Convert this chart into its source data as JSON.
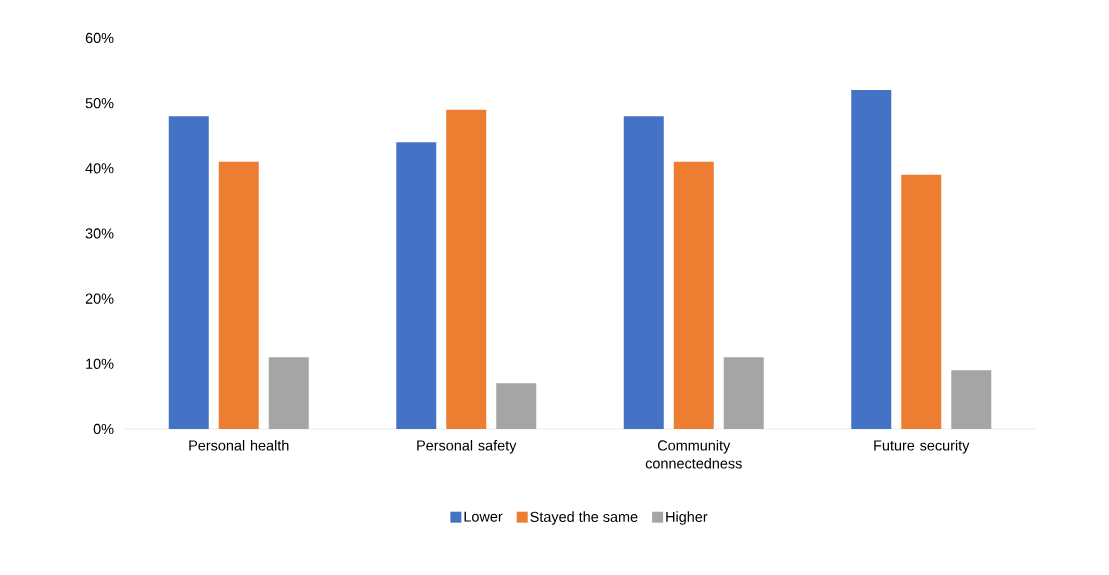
{
  "chart_data": {
    "type": "bar",
    "categories": [
      "Personal health",
      "Personal safety",
      "Community connectedness",
      "Future security"
    ],
    "series": [
      {
        "name": "Lower",
        "color": "#4472c4",
        "values": [
          48,
          44,
          48,
          52
        ]
      },
      {
        "name": "Stayed the same",
        "color": "#ed7d31",
        "values": [
          41,
          49,
          41,
          39
        ]
      },
      {
        "name": "Higher",
        "color": "#a5a5a5",
        "values": [
          11,
          7,
          11,
          9
        ]
      }
    ],
    "ylim": [
      0,
      60
    ],
    "yticks": [
      {
        "value": 0,
        "label": "0%"
      },
      {
        "value": 10,
        "label": "10%"
      },
      {
        "value": 20,
        "label": "20%"
      },
      {
        "value": 30,
        "label": "30%"
      },
      {
        "value": 40,
        "label": "40%"
      },
      {
        "value": 50,
        "label": "50%"
      },
      {
        "value": 60,
        "label": "60%"
      }
    ],
    "grid": false,
    "legend": "bottom"
  }
}
